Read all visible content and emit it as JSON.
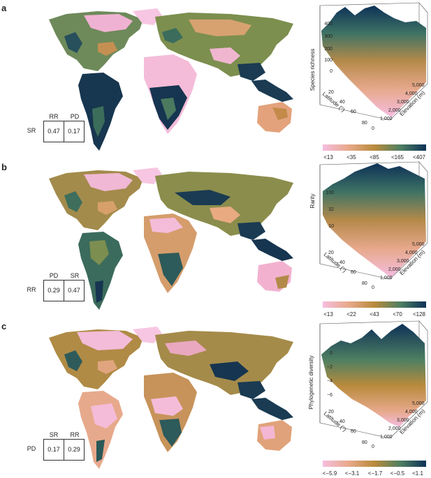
{
  "colors": {
    "low": "#f2b6d6",
    "mid_low": "#e3a784",
    "mid": "#b98b3c",
    "mid_high": "#4f7f62",
    "high": "#0d3157"
  },
  "panels": [
    {
      "letter": "a",
      "corr_table": {
        "row_label": "SR",
        "col_labels": [
          "RR",
          "PD"
        ],
        "values": [
          "0.47",
          "0.17"
        ]
      },
      "surface": {
        "z_label": "Species richness",
        "z_ticks": [
          "400",
          "300",
          "200",
          "100",
          "0"
        ],
        "lat_label": "Latitude (°)",
        "lat_ticks": [
          "20",
          "40",
          "60",
          "80"
        ],
        "elev_label": "Elevation (m)",
        "elev_ticks": [
          "0",
          "1,000",
          "2,000",
          "3,000",
          "4,000",
          "5,000"
        ]
      },
      "legend": [
        "<13",
        "<35",
        "<85",
        "<165",
        "<407"
      ]
    },
    {
      "letter": "b",
      "corr_table": {
        "row_label": "RR",
        "col_labels": [
          "PD",
          "SR"
        ],
        "values": [
          "0.29",
          "0.47"
        ]
      },
      "surface": {
        "z_label": "Rarity",
        "z_ticks": [
          "100",
          "32",
          "10"
        ],
        "lat_label": "Latitude (°)",
        "lat_ticks": [
          "20",
          "40",
          "60",
          "80"
        ],
        "elev_label": "Elevation (m)",
        "elev_ticks": [
          "0",
          "1,000",
          "2,000",
          "3,000",
          "4,000",
          "5,000"
        ]
      },
      "legend": [
        "<13",
        "<22",
        "<43",
        "<70",
        "<128"
      ]
    },
    {
      "letter": "c",
      "corr_table": {
        "row_label": "PD",
        "col_labels": [
          "SR",
          "RR"
        ],
        "values": [
          "0.17",
          "0.29"
        ]
      },
      "surface": {
        "z_label": "Phylogenetic diversity",
        "z_ticks": [
          "0",
          "−2",
          "−4",
          "−6"
        ],
        "lat_label": "Latitude (°)",
        "lat_ticks": [
          "20",
          "40",
          "60",
          "80"
        ],
        "elev_label": "Elevation (m)",
        "elev_ticks": [
          "0",
          "1,000",
          "2,000",
          "3,000",
          "4,000",
          "5,000"
        ]
      },
      "legend": [
        "<−5.9",
        "<−3.1",
        "<−1.7",
        "<−0.5",
        "<1.1"
      ]
    }
  ]
}
